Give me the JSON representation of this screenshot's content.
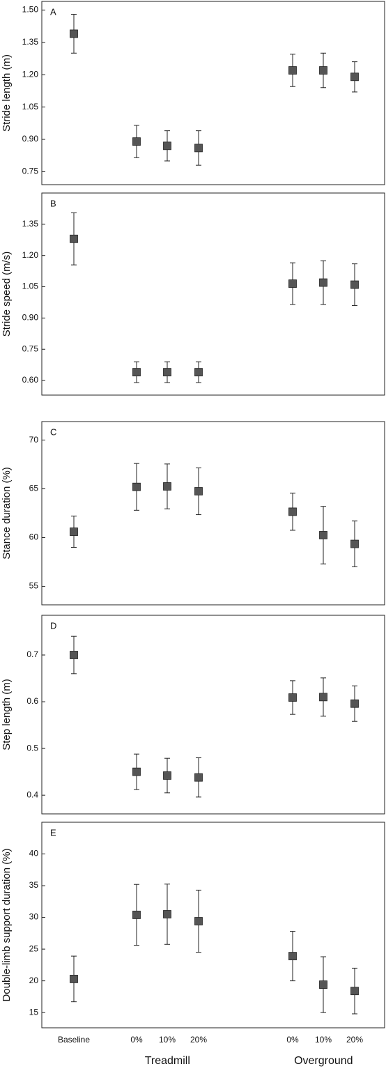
{
  "x_axis": {
    "categories": [
      "Baseline",
      "0%",
      "10%",
      "20%",
      "0%",
      "10%",
      "20%"
    ],
    "groups": [
      {
        "label": "Treadmill",
        "members": [
          1,
          2,
          3
        ]
      },
      {
        "label": "Overground",
        "members": [
          4,
          5,
          6
        ]
      }
    ]
  },
  "chart_data": [
    {
      "type": "errorbar",
      "panel_label": "A",
      "y_label": "Stride length (m)",
      "color": "#555555",
      "values": [
        1.39,
        0.89,
        0.87,
        0.86,
        1.22,
        1.22,
        1.19
      ],
      "errors": [
        0.09,
        0.075,
        0.07,
        0.08,
        0.075,
        0.08,
        0.07
      ],
      "ylim": [
        0.69,
        1.54
      ],
      "yticks": [
        0.75,
        {
          "value": 0.9,
          "label": "0.90"
        },
        1.05,
        {
          "value": 1.2,
          "label": "1.20"
        },
        1.35,
        {
          "value": 1.5,
          "label": "1.50"
        }
      ]
    },
    {
      "type": "errorbar",
      "panel_label": "B",
      "y_label": "Stride speed (m/s)",
      "color": "#555555",
      "values": [
        1.28,
        0.64,
        0.64,
        0.64,
        1.065,
        1.07,
        1.06
      ],
      "errors": [
        0.125,
        0.05,
        0.05,
        0.05,
        0.1,
        0.105,
        0.1
      ],
      "ylim": [
        0.53,
        1.5
      ],
      "yticks": [
        {
          "value": 0.6,
          "label": "0.60"
        },
        0.75,
        {
          "value": 0.9,
          "label": "0.90"
        },
        1.05,
        {
          "value": 1.2,
          "label": "1.20"
        },
        1.35
      ]
    },
    {
      "type": "errorbar",
      "panel_label": "C",
      "y_label": "Stance duration (%)",
      "color": "#555555",
      "values": [
        60.6,
        65.2,
        65.25,
        64.75,
        62.65,
        60.25,
        59.35
      ],
      "errors": [
        1.6,
        2.4,
        2.3,
        2.4,
        1.9,
        2.95,
        2.35
      ],
      "ylim": [
        53.1,
        71.9
      ],
      "yticks": [
        55,
        60,
        65,
        70
      ]
    },
    {
      "type": "errorbar",
      "panel_label": "D",
      "y_label": "Step length (m)",
      "color": "#555555",
      "values": [
        0.7,
        0.45,
        0.442,
        0.438,
        0.609,
        0.61,
        0.596
      ],
      "errors": [
        0.04,
        0.038,
        0.037,
        0.042,
        0.036,
        0.041,
        0.038
      ],
      "ylim": [
        0.36,
        0.785
      ],
      "yticks": [
        0.4,
        0.5,
        0.6,
        0.7
      ]
    },
    {
      "type": "errorbar",
      "panel_label": "E",
      "y_label": "Double-limb support duration (%)",
      "color": "#555555",
      "values": [
        20.3,
        30.4,
        30.5,
        29.4,
        23.9,
        19.4,
        18.4
      ],
      "errors": [
        3.6,
        4.8,
        4.75,
        4.9,
        3.9,
        4.4,
        3.6
      ],
      "ylim": [
        12.6,
        45
      ],
      "yticks": [
        15,
        20,
        25,
        30,
        35,
        40
      ]
    }
  ]
}
